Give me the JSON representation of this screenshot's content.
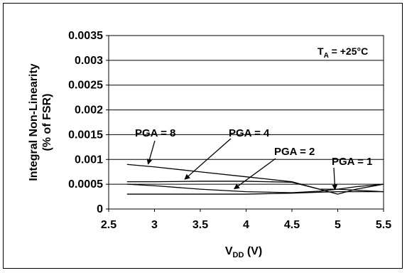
{
  "chart_data": {
    "type": "line",
    "xlabel": {
      "main": "V",
      "sub": "DD",
      "unit": " (V)"
    },
    "ylabel": [
      "Integral Non-Linearity",
      "(% of FSR)"
    ],
    "xlim": [
      2.5,
      5.5
    ],
    "ylim": [
      0,
      0.0035
    ],
    "x_ticks": [
      "2.5",
      "3",
      "3.5",
      "4",
      "4.5",
      "5",
      "5.5"
    ],
    "y_ticks": [
      "0",
      "0.0005",
      "0.001",
      "0.0015",
      "0.002",
      "0.0025",
      "0.003",
      "0.0035"
    ],
    "grid": "horizontal",
    "condition": {
      "main": "T",
      "sub": "A",
      "rest": " = +25°C"
    },
    "series": [
      {
        "name": "PGA = 8",
        "x": [
          2.7,
          3.0,
          3.5,
          4.0,
          4.5,
          4.8,
          5.0,
          5.2,
          5.5
        ],
        "y": [
          0.0009,
          0.00085,
          0.00075,
          0.00065,
          0.00055,
          0.0004,
          0.0003,
          0.0004,
          0.0005
        ]
      },
      {
        "name": "PGA = 4",
        "x": [
          2.7,
          3.0,
          3.5,
          4.0,
          4.5,
          4.8,
          5.0,
          5.2,
          5.5
        ],
        "y": [
          0.00055,
          0.00055,
          0.00056,
          0.00056,
          0.00054,
          0.0004,
          0.0004,
          0.00045,
          0.0005
        ]
      },
      {
        "name": "PGA = 2",
        "x": [
          2.7,
          3.0,
          3.5,
          4.0,
          4.5,
          4.8,
          5.0,
          5.2,
          5.5
        ],
        "y": [
          0.0005,
          0.00047,
          0.0004,
          0.00035,
          0.00033,
          0.00036,
          0.0004,
          0.00038,
          0.00035
        ]
      },
      {
        "name": "PGA = 1",
        "x": [
          2.7,
          3.0,
          3.5,
          4.0,
          4.5,
          4.8,
          5.0,
          5.2,
          5.5
        ],
        "y": [
          0.0003,
          0.0003,
          0.0003,
          0.0003,
          0.00032,
          0.00034,
          0.00035,
          0.00035,
          0.00035
        ]
      }
    ],
    "annotations": [
      {
        "label": "PGA = 8",
        "series": "PGA = 8"
      },
      {
        "label": "PGA = 4",
        "series": "PGA = 4"
      },
      {
        "label": "PGA = 2",
        "series": "PGA = 2"
      },
      {
        "label": "PGA = 1",
        "series": "PGA = 1"
      }
    ]
  }
}
